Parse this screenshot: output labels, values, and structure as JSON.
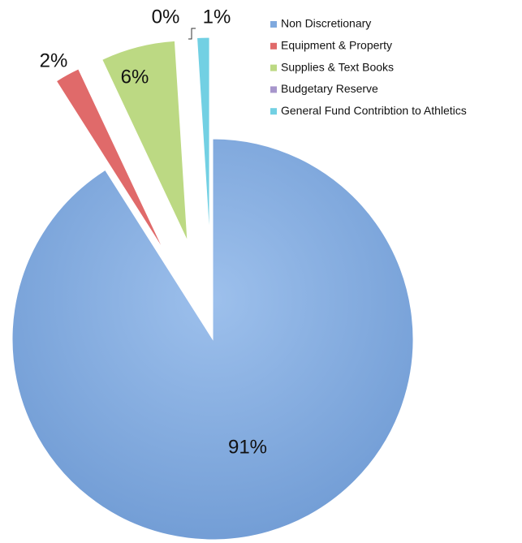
{
  "chart_data": {
    "type": "pie",
    "categories": [
      "Non Discretionary",
      "Equipment & Property",
      "Supplies & Text Books",
      "Budgetary Reserve",
      "General Fund Contribtion to Athletics"
    ],
    "values": [
      91,
      2,
      6,
      0,
      1
    ],
    "value_labels": [
      "91%",
      "2%",
      "6%",
      "0%",
      "1%"
    ],
    "colors": [
      "#7fa9de",
      "#e06a6a",
      "#bcd983",
      "#a796cc",
      "#72d0e3"
    ],
    "legend": "top-right"
  }
}
